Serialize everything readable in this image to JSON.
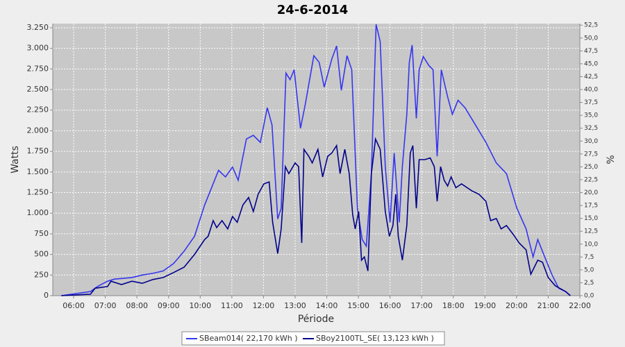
{
  "chart_data": {
    "type": "line",
    "title": "24-6-2014",
    "x_label": "Période",
    "y_label": "Watts",
    "y2_label": "%",
    "xlim": [
      5.34,
      22
    ],
    "ylim": [
      0,
      3300
    ],
    "y2lim": [
      0,
      52.8
    ],
    "grid": true,
    "legend": "bottom",
    "xticks": [
      {
        "value": 6,
        "label": "06:00"
      },
      {
        "value": 7,
        "label": "07:00"
      },
      {
        "value": 8,
        "label": "08:00"
      },
      {
        "value": 9,
        "label": "09:00"
      },
      {
        "value": 10,
        "label": "10:00"
      },
      {
        "value": 11,
        "label": "11:00"
      },
      {
        "value": 12,
        "label": "12:00"
      },
      {
        "value": 13,
        "label": "13:00"
      },
      {
        "value": 14,
        "label": "14:00"
      },
      {
        "value": 15,
        "label": "15:00"
      },
      {
        "value": 16,
        "label": "16:00"
      },
      {
        "value": 17,
        "label": "17:00"
      },
      {
        "value": 18,
        "label": "18:00"
      },
      {
        "value": 19,
        "label": "19:00"
      },
      {
        "value": 20,
        "label": "20:00"
      },
      {
        "value": 21,
        "label": "21:00"
      },
      {
        "value": 22,
        "label": "22:00"
      }
    ],
    "yticks": [
      0,
      250,
      500,
      750,
      {
        "value": 1000,
        "label": "1.000"
      },
      {
        "value": 1250,
        "label": "1.250"
      },
      {
        "value": 1500,
        "label": "1.500"
      },
      {
        "value": 1750,
        "label": "1.750"
      },
      {
        "value": 2000,
        "label": "2.000"
      },
      {
        "value": 2250,
        "label": "2.250"
      },
      {
        "value": 2500,
        "label": "2.500"
      },
      {
        "value": 2750,
        "label": "2.750"
      },
      {
        "value": 3000,
        "label": "3.000"
      },
      {
        "value": 3250,
        "label": "3.250"
      }
    ],
    "y2ticks": [
      {
        "value": 0,
        "label": "0,0"
      },
      {
        "value": 2.5,
        "label": "2,5"
      },
      {
        "value": 5,
        "label": "5,0"
      },
      {
        "value": 7.5,
        "label": "7,5"
      },
      {
        "value": 10,
        "label": "10,0"
      },
      {
        "value": 12.5,
        "label": "12,5"
      },
      {
        "value": 15,
        "label": "15,0"
      },
      {
        "value": 17.5,
        "label": "17,5"
      },
      {
        "value": 20,
        "label": "20,0"
      },
      {
        "value": 22.5,
        "label": "22,5"
      },
      {
        "value": 25,
        "label": "25,0"
      },
      {
        "value": 27.5,
        "label": "27,5"
      },
      {
        "value": 30,
        "label": "30,0"
      },
      {
        "value": 32.5,
        "label": "32,5"
      },
      {
        "value": 35,
        "label": "35,0"
      },
      {
        "value": 37.5,
        "label": "37,5"
      },
      {
        "value": 40,
        "label": "40,0"
      },
      {
        "value": 42.5,
        "label": "42,5"
      },
      {
        "value": 45,
        "label": "45,0"
      },
      {
        "value": 47.5,
        "label": "47,5"
      },
      {
        "value": 50,
        "label": "50,0"
      },
      {
        "value": 52.5,
        "label": "52,5"
      }
    ],
    "series": [
      {
        "name": "SBeam014( 22,170 kWh )",
        "color": "#3535f0",
        "x": [
          5.61,
          6.53,
          6.75,
          7.07,
          7.29,
          7.84,
          8.17,
          8.5,
          8.83,
          9.16,
          9.49,
          9.82,
          10.14,
          10.36,
          10.58,
          10.8,
          11.02,
          11.2,
          11.46,
          11.68,
          11.9,
          12.12,
          12.27,
          12.45,
          12.56,
          12.71,
          12.84,
          12.97,
          13.17,
          13.32,
          13.59,
          13.76,
          13.92,
          14.16,
          14.31,
          14.46,
          14.64,
          14.79,
          14.97,
          15.12,
          15.25,
          15.41,
          15.56,
          15.69,
          15.85,
          16.0,
          16.13,
          16.29,
          16.39,
          16.53,
          16.61,
          16.7,
          16.83,
          16.92,
          17.05,
          17.23,
          17.36,
          17.49,
          17.62,
          17.82,
          17.97,
          18.15,
          18.37,
          18.7,
          19.03,
          19.36,
          19.68,
          20.01,
          20.3,
          20.52,
          20.67,
          20.89,
          21.11,
          21.33,
          21.55,
          21.7
        ],
        "values": [
          0,
          50,
          110,
          175,
          200,
          220,
          250,
          270,
          300,
          390,
          540,
          720,
          1100,
          1310,
          1520,
          1440,
          1560,
          1400,
          1900,
          1945,
          1860,
          2280,
          2070,
          930,
          1060,
          2700,
          2620,
          2740,
          2030,
          2320,
          2910,
          2830,
          2530,
          2870,
          3030,
          2490,
          2910,
          2740,
          1060,
          680,
          600,
          1480,
          3290,
          3080,
          1565,
          890,
          1730,
          890,
          1565,
          2200,
          2830,
          3040,
          2150,
          2740,
          2900,
          2790,
          2740,
          1690,
          2740,
          2410,
          2200,
          2370,
          2280,
          2070,
          1860,
          1610,
          1480,
          1060,
          810,
          470,
          680,
          470,
          260,
          90,
          50,
          0
        ]
      },
      {
        "name": "SBoy2100TL_SE( 13,123 kWh )",
        "color": "#00008b",
        "x": [
          5.61,
          6.53,
          6.68,
          7.07,
          7.18,
          7.51,
          7.84,
          8.17,
          8.5,
          8.83,
          9.16,
          9.49,
          9.82,
          10.14,
          10.25,
          10.41,
          10.52,
          10.69,
          10.87,
          11.02,
          11.17,
          11.35,
          11.53,
          11.68,
          11.83,
          12.01,
          12.18,
          12.29,
          12.45,
          12.56,
          12.69,
          12.8,
          13.0,
          13.11,
          13.21,
          13.28,
          13.43,
          13.54,
          13.72,
          13.87,
          14.03,
          14.16,
          14.31,
          14.42,
          14.57,
          14.71,
          14.82,
          14.9,
          15.01,
          15.1,
          15.19,
          15.3,
          15.41,
          15.54,
          15.69,
          15.85,
          15.98,
          16.09,
          16.18,
          16.26,
          16.39,
          16.53,
          16.64,
          16.72,
          16.83,
          16.92,
          17.1,
          17.27,
          17.4,
          17.49,
          17.6,
          17.71,
          17.82,
          17.93,
          18.08,
          18.26,
          18.59,
          18.81,
          19.03,
          19.18,
          19.36,
          19.51,
          19.68,
          19.9,
          20.08,
          20.3,
          20.45,
          20.56,
          20.67,
          20.82,
          21.0,
          21.22,
          21.55,
          21.7
        ],
        "values": [
          0,
          17,
          90,
          110,
          175,
          135,
          175,
          150,
          195,
          220,
          280,
          345,
          500,
          680,
          720,
          910,
          825,
          910,
          810,
          960,
          890,
          1100,
          1190,
          1020,
          1230,
          1355,
          1380,
          890,
          510,
          810,
          1565,
          1480,
          1610,
          1565,
          640,
          1775,
          1690,
          1610,
          1775,
          1440,
          1690,
          1730,
          1820,
          1480,
          1775,
          1480,
          980,
          810,
          1020,
          430,
          470,
          300,
          1480,
          1900,
          1775,
          1020,
          720,
          850,
          1230,
          720,
          430,
          850,
          1730,
          1820,
          1060,
          1650,
          1650,
          1670,
          1565,
          1145,
          1565,
          1400,
          1330,
          1440,
          1310,
          1355,
          1270,
          1230,
          1145,
          910,
          935,
          810,
          850,
          740,
          640,
          555,
          260,
          345,
          430,
          405,
          220,
          120,
          50,
          0
        ]
      }
    ]
  }
}
